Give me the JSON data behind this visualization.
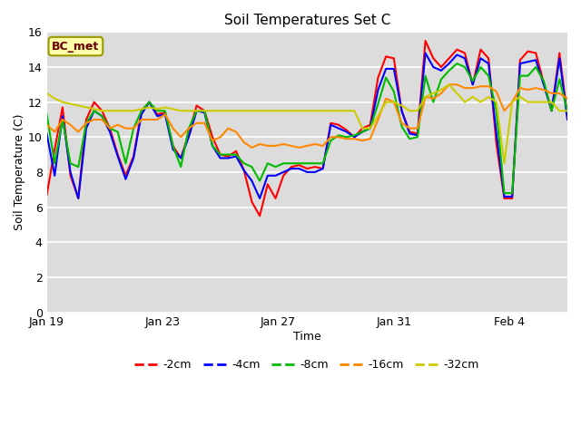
{
  "title": "Soil Temperatures Set C",
  "xlabel": "Time",
  "ylabel": "Soil Temperature (C)",
  "ylim": [
    0,
    16
  ],
  "yticks": [
    0,
    2,
    4,
    6,
    8,
    10,
    12,
    14,
    16
  ],
  "annotation": "BC_met",
  "legend_labels": [
    "-2cm",
    "-4cm",
    "-8cm",
    "-16cm",
    "-32cm"
  ],
  "line_colors": [
    "#ff0000",
    "#0000ff",
    "#00bb00",
    "#ff8800",
    "#cccc00"
  ],
  "x_tick_labels": [
    "Jan 19",
    "Jan 23",
    "Jan 27",
    "Jan 31",
    "Feb 4"
  ],
  "background_color": "#dcdcdc",
  "data": {
    "neg2cm": [
      6.7,
      9.3,
      11.7,
      7.8,
      6.5,
      11.0,
      12.0,
      11.5,
      10.5,
      9.0,
      7.8,
      8.9,
      11.5,
      12.0,
      11.3,
      11.4,
      9.5,
      8.8,
      10.2,
      11.8,
      11.5,
      10.0,
      9.0,
      8.9,
      9.2,
      8.1,
      6.3,
      5.5,
      7.3,
      6.5,
      7.8,
      8.3,
      8.4,
      8.2,
      8.3,
      8.2,
      10.8,
      10.7,
      10.4,
      10.0,
      10.5,
      10.7,
      13.4,
      14.6,
      14.5,
      11.5,
      10.3,
      10.2,
      15.5,
      14.5,
      14.0,
      14.5,
      15.0,
      14.8,
      13.0,
      15.0,
      14.5,
      9.6,
      6.5,
      6.5,
      14.4,
      14.9,
      14.8,
      13.1,
      11.5,
      14.8,
      11.2
    ],
    "neg4cm": [
      10.2,
      7.8,
      11.2,
      8.0,
      6.5,
      10.5,
      11.5,
      11.2,
      10.3,
      8.9,
      7.6,
      8.8,
      11.3,
      12.0,
      11.2,
      11.3,
      9.3,
      8.8,
      10.0,
      11.5,
      11.4,
      9.5,
      8.8,
      8.8,
      8.9,
      8.1,
      7.5,
      6.5,
      7.8,
      7.8,
      8.0,
      8.2,
      8.2,
      8.0,
      8.0,
      8.2,
      10.7,
      10.5,
      10.3,
      10.0,
      10.3,
      10.5,
      12.7,
      13.9,
      13.9,
      11.5,
      10.2,
      10.1,
      14.8,
      14.0,
      13.8,
      14.2,
      14.7,
      14.5,
      13.0,
      14.5,
      14.2,
      10.2,
      6.6,
      6.6,
      14.2,
      14.3,
      14.4,
      13.0,
      11.5,
      14.5,
      11.0
    ],
    "neg8cm": [
      11.3,
      8.5,
      11.0,
      8.5,
      8.3,
      10.8,
      11.5,
      11.2,
      10.5,
      10.3,
      8.5,
      10.5,
      11.5,
      12.0,
      11.5,
      11.5,
      9.5,
      8.3,
      10.5,
      11.5,
      11.5,
      9.5,
      9.0,
      9.0,
      9.0,
      8.5,
      8.3,
      7.5,
      8.5,
      8.3,
      8.5,
      8.5,
      8.5,
      8.5,
      8.5,
      8.5,
      9.8,
      10.1,
      10.0,
      10.1,
      10.3,
      10.5,
      11.9,
      13.4,
      12.6,
      10.6,
      9.9,
      10.0,
      13.5,
      12.0,
      13.3,
      13.8,
      14.2,
      14.0,
      13.2,
      14.0,
      13.5,
      11.5,
      6.8,
      6.8,
      13.5,
      13.5,
      14.0,
      13.2,
      11.5,
      13.3,
      11.5
    ],
    "neg16cm": [
      10.7,
      10.3,
      11.0,
      10.7,
      10.3,
      10.8,
      11.0,
      11.0,
      10.5,
      10.7,
      10.5,
      10.5,
      11.0,
      11.0,
      11.0,
      11.3,
      10.5,
      10.0,
      10.5,
      10.8,
      10.8,
      9.8,
      10.0,
      10.5,
      10.3,
      9.7,
      9.4,
      9.6,
      9.5,
      9.5,
      9.6,
      9.5,
      9.4,
      9.5,
      9.6,
      9.5,
      10.0,
      10.0,
      9.9,
      9.9,
      9.8,
      9.9,
      11.0,
      12.2,
      12.0,
      10.8,
      10.5,
      10.5,
      12.3,
      12.2,
      12.5,
      13.0,
      13.0,
      12.8,
      12.8,
      12.9,
      12.9,
      12.6,
      11.5,
      12.0,
      12.8,
      12.7,
      12.8,
      12.7,
      12.5,
      12.5,
      12.2
    ],
    "neg32cm": [
      12.5,
      12.2,
      12.0,
      11.9,
      11.8,
      11.7,
      11.6,
      11.5,
      11.5,
      11.5,
      11.5,
      11.5,
      11.6,
      11.7,
      11.6,
      11.7,
      11.6,
      11.5,
      11.5,
      11.5,
      11.5,
      11.5,
      11.5,
      11.5,
      11.5,
      11.5,
      11.5,
      11.5,
      11.5,
      11.5,
      11.5,
      11.5,
      11.5,
      11.5,
      11.5,
      11.5,
      11.5,
      11.5,
      11.5,
      11.5,
      10.5,
      10.5,
      11.2,
      12.0,
      12.0,
      11.8,
      11.5,
      11.5,
      12.3,
      12.5,
      12.7,
      13.0,
      12.5,
      12.0,
      12.3,
      12.0,
      12.3,
      12.0,
      8.5,
      12.0,
      12.3,
      12.0,
      12.0,
      12.0,
      12.0,
      11.5,
      11.5
    ]
  }
}
